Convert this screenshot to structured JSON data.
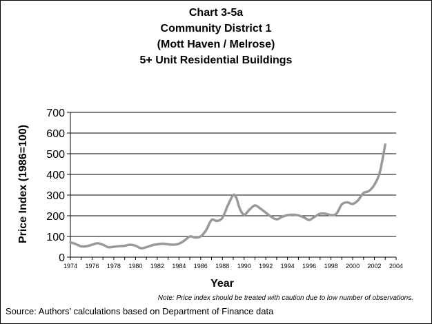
{
  "chart_data": {
    "type": "line",
    "title_lines": [
      "Chart 3-5a",
      "Community District 1",
      "(Mott Haven / Melrose)",
      "5+ Unit Residential Buildings"
    ],
    "xlabel": "Year",
    "ylabel": "Price Index (1986=100)",
    "xlim": [
      1974,
      2004
    ],
    "ylim": [
      0,
      700
    ],
    "yticks": [
      "0",
      "100",
      "200",
      "300",
      "400",
      "500",
      "600",
      "700"
    ],
    "xticks": [
      "1974",
      "1976",
      "1978",
      "1980",
      "1982",
      "1984",
      "1986",
      "1988",
      "1990",
      "1992",
      "1994",
      "1996",
      "1998",
      "2000",
      "2002",
      "2004"
    ],
    "grid": true,
    "series_color": "#999999",
    "x": [
      1974,
      1974.5,
      1975,
      1975.5,
      1976,
      1976.5,
      1977,
      1977.5,
      1978,
      1978.5,
      1979,
      1979.5,
      1980,
      1980.5,
      1981,
      1981.5,
      1982,
      1982.5,
      1983,
      1983.5,
      1984,
      1984.5,
      1985,
      1985.5,
      1986,
      1986.5,
      1987,
      1987.5,
      1988,
      1988.5,
      1989,
      1989.3,
      1989.6,
      1990,
      1990.5,
      1991,
      1991.5,
      1992,
      1992.5,
      1993,
      1993.5,
      1994,
      1994.5,
      1995,
      1995.5,
      1996,
      1996.5,
      1997,
      1997.5,
      1998,
      1998.5,
      1999,
      1999.5,
      2000,
      2000.5,
      2001,
      2001.5,
      2002,
      2002.5,
      2003
    ],
    "values": [
      72,
      63,
      52,
      53,
      60,
      67,
      60,
      48,
      50,
      53,
      55,
      60,
      55,
      43,
      48,
      57,
      62,
      65,
      62,
      60,
      65,
      80,
      100,
      95,
      100,
      130,
      180,
      175,
      190,
      250,
      300,
      285,
      235,
      205,
      230,
      250,
      235,
      215,
      195,
      183,
      195,
      203,
      205,
      202,
      192,
      180,
      195,
      210,
      210,
      203,
      210,
      255,
      265,
      257,
      275,
      310,
      320,
      350,
      410,
      545
    ],
    "note": "Note: Price index should be treated with caution due to low number of observations.",
    "source": "Source: Authors’ calculations based on Department of Finance data"
  }
}
